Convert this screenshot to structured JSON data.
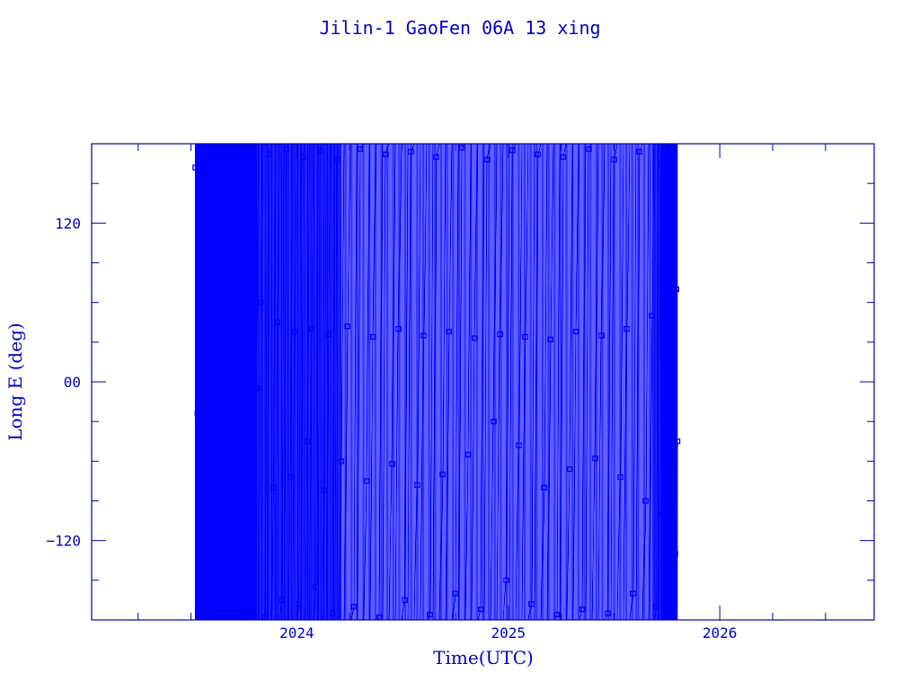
{
  "chart_data": {
    "type": "line",
    "title": "Jilin-1 GaoFen 06A 13 xing",
    "xlabel": "Time(UTC)",
    "ylabel": "Long E (deg)",
    "xlim": [
      2023.03,
      2026.73
    ],
    "ylim": [
      -180,
      180
    ],
    "x_ticks": [
      {
        "value": 2024,
        "label": "2024"
      },
      {
        "value": 2025,
        "label": "2025"
      },
      {
        "value": 2026,
        "label": "2026"
      }
    ],
    "y_ticks": [
      {
        "value": 120,
        "label": "120"
      },
      {
        "value": 0,
        "label": "00"
      },
      {
        "value": -120,
        "label": "-120"
      }
    ],
    "x_minor_step": 0.25,
    "y_minor_step": 30,
    "grid": false,
    "color": "#0000ff",
    "marker": "square",
    "series": [
      {
        "points": [
          [
            2023.52,
            162
          ],
          [
            2023.53,
            -24
          ],
          [
            2023.54,
            110
          ],
          [
            2023.55,
            -118
          ],
          [
            2023.56,
            150
          ],
          [
            2023.57,
            -12
          ],
          [
            2023.58,
            78
          ],
          [
            2023.59,
            -150
          ],
          [
            2023.6,
            170
          ],
          [
            2023.61,
            -60
          ],
          [
            2023.62,
            95
          ],
          [
            2023.63,
            -165
          ],
          [
            2023.64,
            140
          ],
          [
            2023.65,
            -30
          ],
          [
            2023.66,
            66
          ],
          [
            2023.67,
            -140
          ],
          [
            2023.68,
            175
          ],
          [
            2023.69,
            -8
          ],
          [
            2023.7,
            88
          ],
          [
            2023.71,
            -172
          ],
          [
            2023.72,
            160
          ],
          [
            2023.73,
            -70
          ],
          [
            2023.74,
            52
          ],
          [
            2023.75,
            -176
          ],
          [
            2023.76,
            168
          ],
          [
            2023.77,
            -40
          ],
          [
            2023.78,
            55
          ],
          [
            2023.79,
            -160
          ],
          [
            2023.8,
            178
          ],
          [
            2023.81,
            -5
          ],
          [
            2023.83,
            60
          ],
          [
            2023.85,
            -178
          ],
          [
            2023.87,
            172
          ],
          [
            2023.89,
            -80
          ],
          [
            2023.91,
            45
          ],
          [
            2023.93,
            -165
          ],
          [
            2023.95,
            176
          ],
          [
            2023.97,
            -72
          ],
          [
            2023.99,
            38
          ],
          [
            2024.01,
            -168
          ],
          [
            2024.03,
            170
          ],
          [
            2024.05,
            -45
          ],
          [
            2024.07,
            40
          ],
          [
            2024.09,
            -155
          ],
          [
            2024.11,
            175
          ],
          [
            2024.13,
            -82
          ],
          [
            2024.15,
            36
          ],
          [
            2024.17,
            -175
          ],
          [
            2024.19,
            168
          ],
          [
            2024.21,
            -60
          ],
          [
            2024.24,
            42
          ],
          [
            2024.27,
            -170
          ],
          [
            2024.3,
            176
          ],
          [
            2024.33,
            -75
          ],
          [
            2024.36,
            34
          ],
          [
            2024.39,
            -178
          ],
          [
            2024.42,
            172
          ],
          [
            2024.45,
            -62
          ],
          [
            2024.48,
            40
          ],
          [
            2024.51,
            -165
          ],
          [
            2024.54,
            174
          ],
          [
            2024.57,
            -78
          ],
          [
            2024.6,
            35
          ],
          [
            2024.63,
            -176
          ],
          [
            2024.66,
            170
          ],
          [
            2024.69,
            -70
          ],
          [
            2024.72,
            38
          ],
          [
            2024.75,
            -160
          ],
          [
            2024.78,
            177
          ],
          [
            2024.81,
            -55
          ],
          [
            2024.84,
            33
          ],
          [
            2024.87,
            -172
          ],
          [
            2024.9,
            168
          ],
          [
            2024.93,
            -30
          ],
          [
            2024.96,
            36
          ],
          [
            2024.99,
            -150
          ],
          [
            2025.02,
            175
          ],
          [
            2025.05,
            -48
          ],
          [
            2025.08,
            34
          ],
          [
            2025.11,
            -168
          ],
          [
            2025.14,
            172
          ],
          [
            2025.17,
            -80
          ],
          [
            2025.2,
            32
          ],
          [
            2025.23,
            -176
          ],
          [
            2025.26,
            170
          ],
          [
            2025.29,
            -66
          ],
          [
            2025.32,
            38
          ],
          [
            2025.35,
            -172
          ],
          [
            2025.38,
            176
          ],
          [
            2025.41,
            -58
          ],
          [
            2025.44,
            35
          ],
          [
            2025.47,
            -175
          ],
          [
            2025.5,
            168
          ],
          [
            2025.53,
            -72
          ],
          [
            2025.56,
            40
          ],
          [
            2025.59,
            -160
          ],
          [
            2025.62,
            174
          ],
          [
            2025.65,
            -90
          ],
          [
            2025.68,
            50
          ],
          [
            2025.7,
            -170
          ],
          [
            2025.72,
            165
          ],
          [
            2025.73,
            -100
          ],
          [
            2025.74,
            70
          ],
          [
            2025.75,
            -150
          ],
          [
            2025.76,
            120
          ],
          [
            2025.77,
            -60
          ],
          [
            2025.78,
            160
          ],
          [
            2025.79,
            -130
          ],
          [
            2025.795,
            70
          ],
          [
            2025.8,
            -45
          ]
        ]
      }
    ]
  }
}
